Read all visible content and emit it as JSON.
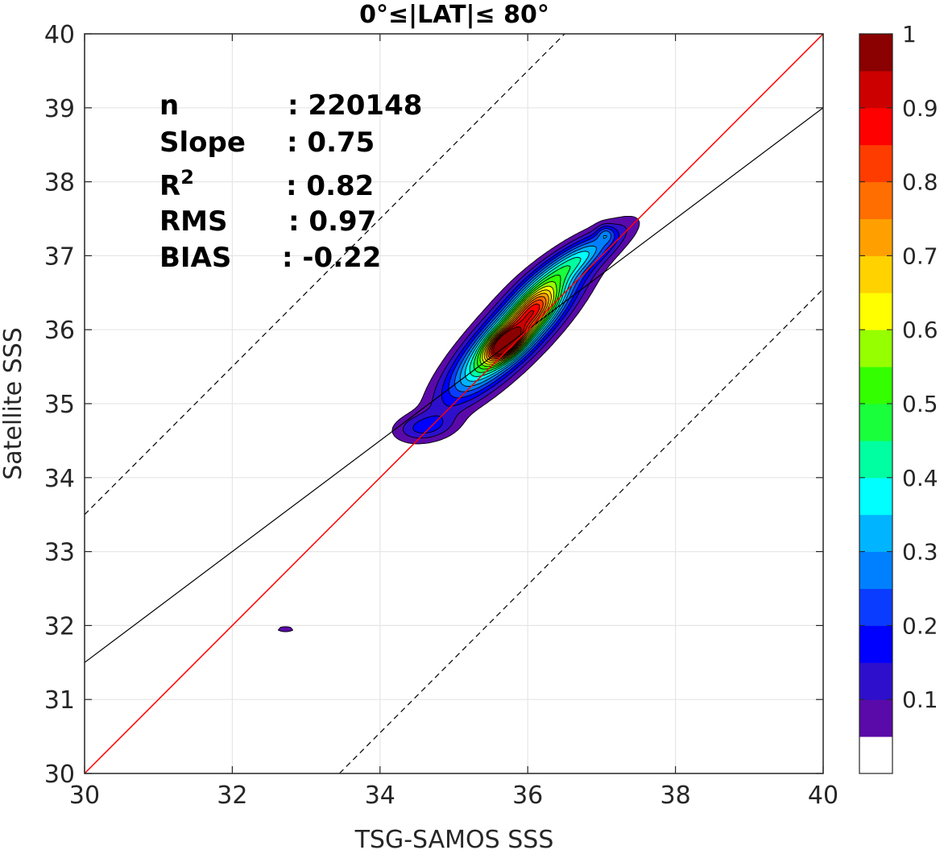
{
  "chart_data": {
    "type": "contour",
    "title": "0°≤|LAT|≤ 80°",
    "xlabel": "TSG-SAMOS SSS",
    "ylabel": "Satellite SSS",
    "xlim": [
      30,
      40
    ],
    "ylim": [
      30,
      40
    ],
    "xticks": [
      30,
      32,
      34,
      36,
      38,
      40
    ],
    "xtick_labels": [
      "30",
      "32",
      "34",
      "36",
      "38",
      "40"
    ],
    "yticks": [
      30,
      31,
      32,
      33,
      34,
      35,
      36,
      37,
      38,
      39,
      40
    ],
    "ytick_labels": [
      "30",
      "31",
      "32",
      "33",
      "34",
      "35",
      "36",
      "37",
      "38",
      "39",
      "40"
    ],
    "grid": true,
    "stats": [
      {
        "key": "n",
        "sep": ": 220148"
      },
      {
        "key": "Slope",
        "sep": ": 0.75"
      },
      {
        "key": "R",
        "sup": "2",
        "sep": ": 0.82"
      },
      {
        "key": "RMS",
        "sep": ": 0.97"
      },
      {
        "key": "BIAS",
        "sep": ": -0.22"
      }
    ],
    "lines": {
      "one_to_one": {
        "slope": 1,
        "intercept": 0,
        "color": "#ff0000"
      },
      "regression": {
        "slope": 0.75,
        "intercept": 9.0,
        "color": "#000000"
      },
      "offsets": [
        3.5,
        -3.45
      ]
    },
    "colorbar": {
      "range": [
        0,
        1
      ],
      "tick_values": [
        0.1,
        0.2,
        0.3,
        0.4,
        0.5,
        0.6,
        0.7,
        0.8,
        0.9,
        1
      ],
      "tick_labels": [
        "0.1",
        "0.2",
        "0.3",
        "0.4",
        "0.5",
        "0.6",
        "0.7",
        "0.8",
        "0.9",
        "1"
      ],
      "colors": [
        "#ffffff",
        "#5a0aa8",
        "#2e0fcc",
        "#0000ff",
        "#0a3cff",
        "#0080ff",
        "#00b4ff",
        "#00ffff",
        "#00ffa0",
        "#19ff3c",
        "#33ff00",
        "#96ff00",
        "#ffff00",
        "#ffd200",
        "#ffa000",
        "#ff6e00",
        "#ff3c00",
        "#ff0000",
        "#cd0000",
        "#8b0000"
      ]
    },
    "density_blobs": [
      {
        "cx": 35.8,
        "cy": 35.95,
        "sx": 0.55,
        "sy": 0.55,
        "rho": 0.85,
        "amp": 0.7
      },
      {
        "cx": 35.7,
        "cy": 35.8,
        "sx": 0.16,
        "sy": 0.14,
        "rho": 0.5,
        "amp": 0.55
      },
      {
        "cx": 36.1,
        "cy": 36.3,
        "sx": 0.22,
        "sy": 0.22,
        "rho": 0.6,
        "amp": 0.3
      },
      {
        "cx": 36.65,
        "cy": 36.95,
        "sx": 0.45,
        "sy": 0.3,
        "rho": 0.85,
        "amp": 0.28
      },
      {
        "cx": 37.05,
        "cy": 37.3,
        "sx": 0.08,
        "sy": 0.08,
        "rho": 0,
        "amp": 0.12
      },
      {
        "cx": 34.6,
        "cy": 34.68,
        "sx": 0.28,
        "sy": 0.13,
        "rho": 0.2,
        "amp": 0.14
      },
      {
        "cx": 32.72,
        "cy": 31.95,
        "sx": 0.1,
        "sy": 0.03,
        "rho": 0,
        "amp": 0.09
      }
    ]
  }
}
